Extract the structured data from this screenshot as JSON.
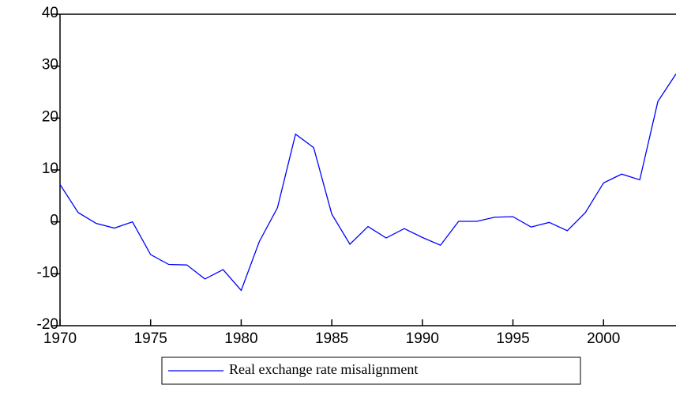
{
  "chart_data": {
    "type": "line",
    "x": [
      1970,
      1971,
      1972,
      1973,
      1974,
      1975,
      1976,
      1977,
      1978,
      1979,
      1980,
      1981,
      1982,
      1983,
      1984,
      1985,
      1986,
      1987,
      1988,
      1989,
      1990,
      1991,
      1992,
      1993,
      1994,
      1995,
      1996,
      1997,
      1998,
      1999,
      2000,
      2001,
      2002,
      2003,
      2004
    ],
    "series": [
      {
        "name": "Real exchange rate misalignment",
        "color": "#0000ff",
        "values": [
          7.2,
          1.8,
          -0.3,
          -1.2,
          0,
          -6.3,
          -8.2,
          -8.3,
          -11,
          -9.2,
          -13.2,
          -3.8,
          2.7,
          16.9,
          14.3,
          1.5,
          -4.3,
          -0.9,
          -3.1,
          -1.3,
          -3,
          -4.5,
          0.1,
          0.1,
          0.9,
          1,
          -1,
          -0.1,
          -1.7,
          1.8,
          7.5,
          9.2,
          8.1,
          23.2,
          28.5
        ]
      }
    ],
    "xlim": [
      1970,
      2004
    ],
    "xticks": [
      1970,
      1975,
      1980,
      1985,
      1990,
      1995,
      2000
    ],
    "ylim": [
      -20,
      40
    ],
    "yticks": [
      -20,
      -10,
      0,
      10,
      20,
      30,
      40
    ],
    "legend": "bottom"
  }
}
